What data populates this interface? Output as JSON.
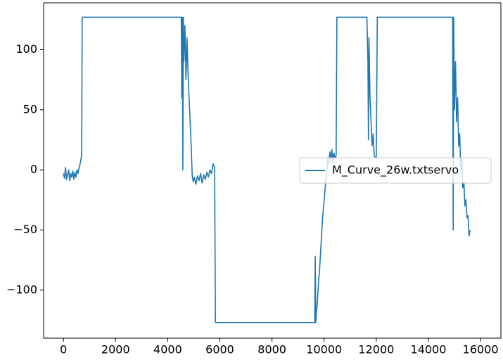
{
  "chart_data": {
    "type": "line",
    "x": [
      0,
      40,
      80,
      120,
      160,
      200,
      240,
      280,
      320,
      360,
      400,
      440,
      480,
      520,
      560,
      600,
      640,
      680,
      700,
      720,
      4520,
      4540,
      4560,
      4580,
      4600,
      4620,
      4660,
      4700,
      4740,
      4780,
      4820,
      4860,
      4900,
      4940,
      4980,
      5020,
      5080,
      5140,
      5200,
      5260,
      5320,
      5380,
      5440,
      5500,
      5560,
      5620,
      5680,
      5740,
      5800,
      5830,
      9640,
      9660,
      9680,
      9700,
      9740,
      9780,
      9820,
      9860,
      9900,
      9940,
      9980,
      10020,
      10060,
      10100,
      10140,
      10180,
      10220,
      10260,
      10300,
      10340,
      10380,
      10420,
      10460,
      10490,
      11640,
      11680,
      11700,
      11720,
      11760,
      11800,
      11840,
      11880,
      11920,
      11960,
      12000,
      12040,
      14930,
      14950,
      14970,
      15000,
      15040,
      15080,
      15120,
      15160,
      15200,
      15240,
      15280,
      15320,
      15360,
      15400,
      15440,
      15480,
      15520,
      15560,
      15600
    ],
    "series": [
      {
        "name": "M_Curve_26w.txtservo",
        "color": "#1f77b4",
        "values": [
          -3,
          -7,
          2,
          -8,
          -4,
          0,
          -9,
          -3,
          -6,
          -1,
          -8,
          -2,
          -6,
          0,
          -3,
          2,
          5,
          10,
          13,
          127,
          127,
          60,
          127,
          0,
          127,
          90,
          120,
          75,
          110,
          80,
          60,
          40,
          20,
          -5,
          -10,
          -6,
          -12,
          -5,
          -9,
          -3,
          -11,
          -4,
          -8,
          -2,
          -6,
          0,
          -3,
          5,
          2,
          -127,
          -127,
          -72,
          -127,
          -120,
          -110,
          -95,
          -85,
          -70,
          -55,
          -40,
          -30,
          -20,
          -10,
          0,
          10,
          5,
          15,
          8,
          17,
          6,
          14,
          9,
          12,
          127,
          127,
          90,
          25,
          110,
          60,
          40,
          20,
          30,
          12,
          10,
          10,
          127,
          127,
          -50,
          127,
          50,
          90,
          40,
          60,
          20,
          30,
          0,
          10,
          -15,
          -10,
          -30,
          -25,
          -40,
          -38,
          -55,
          -50
        ]
      }
    ],
    "xlim": [
      -760,
      16780
    ],
    "ylim": [
      -140,
      139
    ],
    "xticks": [
      0,
      2000,
      4000,
      6000,
      8000,
      10000,
      12000,
      14000,
      16000
    ],
    "yticks": [
      {
        "value": -100,
        "label": "−100"
      },
      {
        "value": -50,
        "label": "−50"
      },
      0,
      50,
      100
    ],
    "legend": "center right"
  }
}
